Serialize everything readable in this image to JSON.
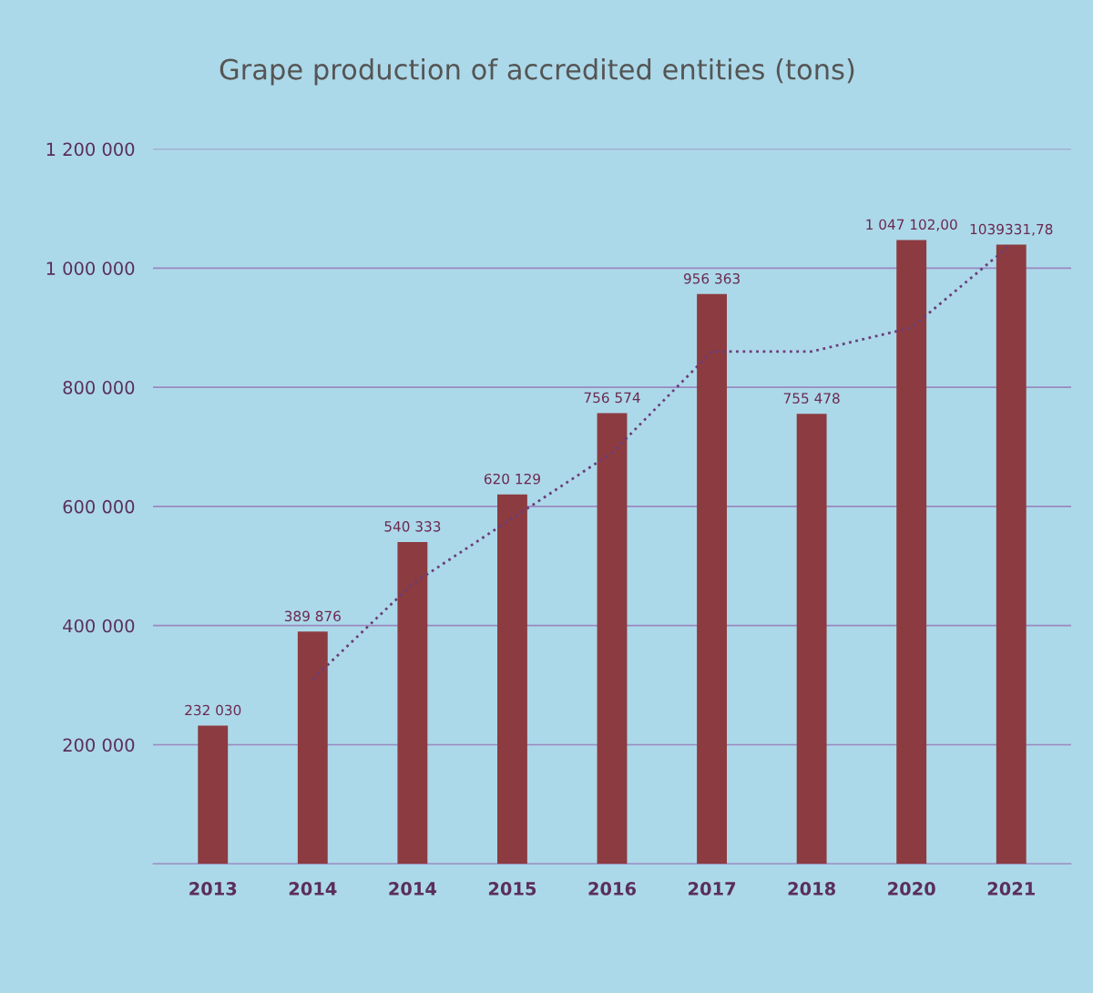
{
  "chart_data": {
    "type": "bar",
    "title": "Grape production of accredited entities (tons)",
    "categories": [
      "2013",
      "2014",
      "2014",
      "2015",
      "2016",
      "2017",
      "2018",
      "2020",
      "2021"
    ],
    "series": [
      {
        "color": "#8c3b40",
        "values": [
          232030,
          389876,
          540333,
          620129,
          756574,
          956363,
          755478,
          1047102,
          1039331.78
        ],
        "value_labels": [
          "232 030",
          "389 876",
          "540 333",
          "620 129",
          "756 574",
          "956 363",
          "755 478",
          "1 047 102,00",
          "1039331,78"
        ]
      },
      {
        "type": "line",
        "color": "#6a3d7a",
        "line_style": "dotted",
        "values": [
          null,
          310000,
          470000,
          580000,
          690000,
          860000,
          860000,
          900000,
          1040000
        ]
      }
    ],
    "ylim": [
      0,
      1200000
    ],
    "yticks": [
      {
        "value": 0,
        "label": null
      },
      {
        "value": 200000,
        "label": "200 000"
      },
      {
        "value": 400000,
        "label": "400 000"
      },
      {
        "value": 600000,
        "label": "600 000"
      },
      {
        "value": 800000,
        "label": "800 000"
      },
      {
        "value": 1000000,
        "label": "1 000 000"
      },
      {
        "value": 1200000,
        "label": "1 200 000"
      }
    ],
    "grid": "y",
    "legend": false
  }
}
